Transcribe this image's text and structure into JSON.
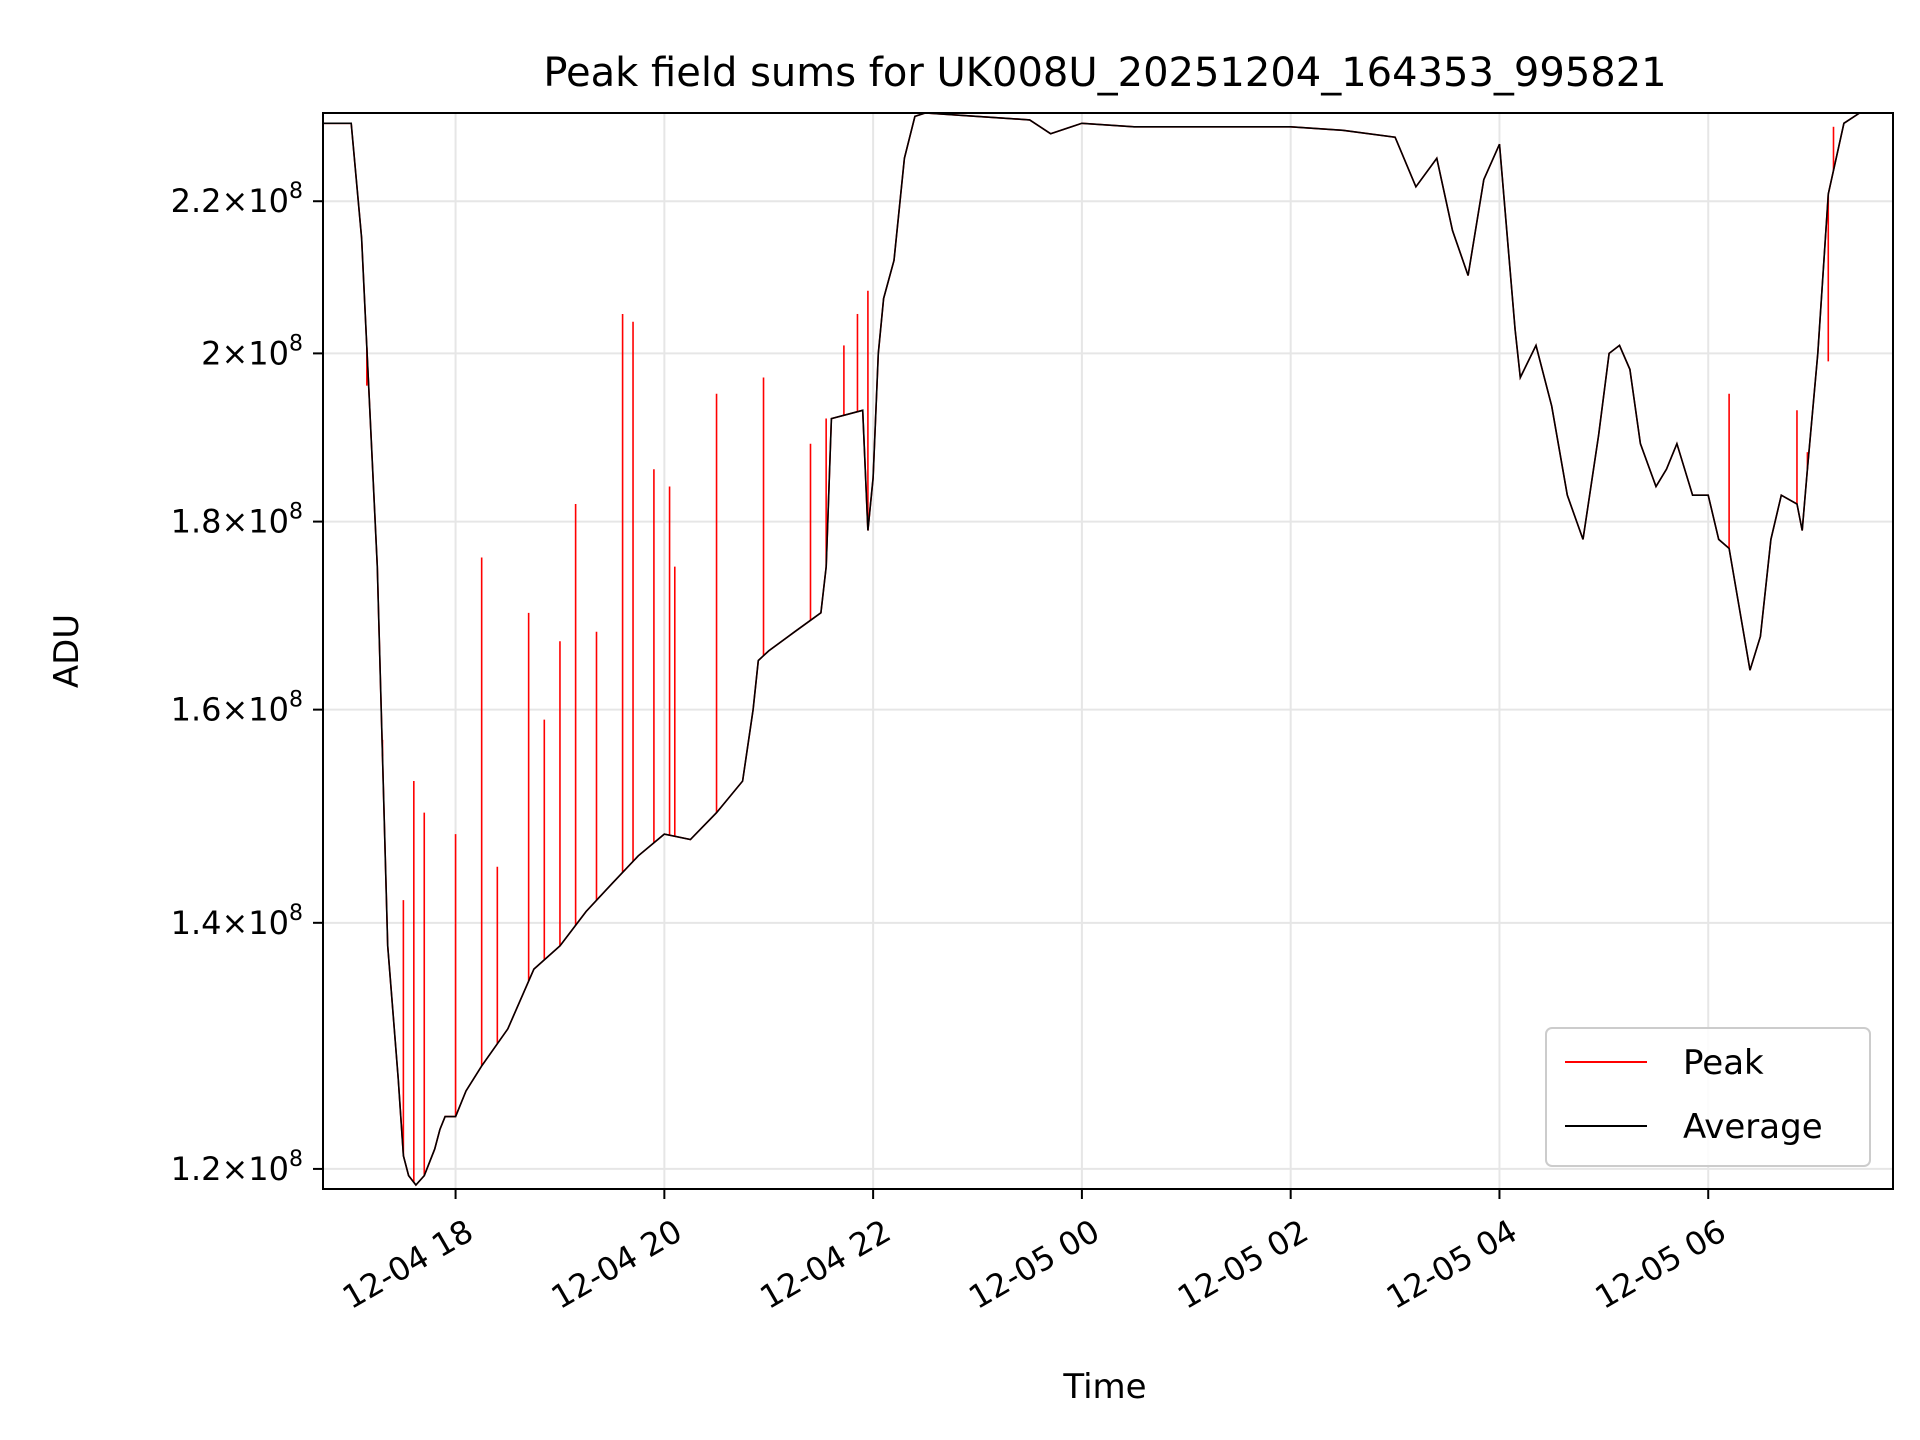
{
  "chart_data": {
    "type": "line",
    "title": "Peak field sums for UK008U_20251204_164353_995821",
    "xlabel": "Time",
    "ylabel": "ADU",
    "yscale": "log",
    "x_ticks": [
      "12-04 18",
      "12-04 20",
      "12-04 22",
      "12-05 00",
      "12-05 02",
      "12-05 04",
      "12-05 06"
    ],
    "x_tick_hours": [
      18,
      20,
      22,
      24,
      26,
      28,
      30
    ],
    "xlim_hours": [
      16.73,
      31.77
    ],
    "y_ticks": [
      {
        "value": 120000000,
        "mant": "1.2",
        "exp": "8"
      },
      {
        "value": 140000000,
        "mant": "1.4",
        "exp": "8"
      },
      {
        "value": 160000000,
        "mant": "1.6",
        "exp": "8"
      },
      {
        "value": 180000000,
        "mant": "1.8",
        "exp": "8"
      },
      {
        "value": 200000000,
        "mant": "2",
        "exp": "8"
      },
      {
        "value": 220000000,
        "mant": "2.2",
        "exp": "8"
      }
    ],
    "ylim": [
      118500000,
      232500000
    ],
    "grid": true,
    "legend_position": "lower-right",
    "series": [
      {
        "name": "Peak",
        "color": "#ff0000",
        "x_hours": [
          16.73,
          17.0,
          17.1,
          17.25,
          17.35,
          17.45,
          17.5,
          17.55,
          17.62,
          17.7,
          17.75,
          17.8,
          17.85,
          17.9,
          18.0,
          18.1,
          18.25,
          18.5,
          18.75,
          19.0,
          19.25,
          19.5,
          19.75,
          20.0,
          20.25,
          20.5,
          20.75,
          20.85,
          20.9,
          21.0,
          21.25,
          21.5,
          21.55,
          21.6,
          21.9,
          21.95,
          22.0,
          22.05,
          22.1,
          22.2,
          22.3,
          22.4,
          22.5,
          23.0,
          23.5,
          23.7,
          24.0,
          24.5,
          25.0,
          25.5,
          26.0,
          26.5,
          27.0,
          27.2,
          27.4,
          27.55,
          27.7,
          27.85,
          28.0,
          28.15,
          28.2,
          28.35,
          28.5,
          28.65,
          28.8,
          28.95,
          29.05,
          29.15,
          29.25,
          29.35,
          29.5,
          29.6,
          29.7,
          29.85,
          30.0,
          30.1,
          30.2,
          30.4,
          30.5,
          30.6,
          30.7,
          30.85,
          30.9,
          30.95,
          31.05,
          31.15,
          31.3,
          31.45,
          31.6,
          31.77
        ],
        "y": [
          231000000,
          231000000,
          215000000,
          175000000,
          138000000,
          127000000,
          121000000,
          119500000,
          118800000,
          119500000,
          120500000,
          121500000,
          123000000,
          124000000,
          124000000,
          126000000,
          128000000,
          131000000,
          136000000,
          138000000,
          141000000,
          143500000,
          146000000,
          148000000,
          147500000,
          150000000,
          153000000,
          160000000,
          165000000,
          166000000,
          168000000,
          170000000,
          175000000,
          192000000,
          193000000,
          179000000,
          185000000,
          200000000,
          207000000,
          212000000,
          226000000,
          232000000,
          232500000,
          232000000,
          231500000,
          229500000,
          231000000,
          230500000,
          230500000,
          230500000,
          230500000,
          230000000,
          229000000,
          222000000,
          226000000,
          216000000,
          210000000,
          223000000,
          228000000,
          203000000,
          197000000,
          201000000,
          193500000,
          183000000,
          178000000,
          190000000,
          200000000,
          201000000,
          198000000,
          189000000,
          184000000,
          186000000,
          189000000,
          183000000,
          183000000,
          178000000,
          177000000,
          164000000,
          167500000,
          178000000,
          183000000,
          182000000,
          179000000,
          186000000,
          200000000,
          221000000,
          231000000,
          232500000,
          232500000,
          232500000
        ],
        "spikes": [
          {
            "x_hours": 17.15,
            "y": 196000000
          },
          {
            "x_hours": 17.3,
            "y": 157000000
          },
          {
            "x_hours": 17.5,
            "y": 142000000
          },
          {
            "x_hours": 17.6,
            "y": 153000000
          },
          {
            "x_hours": 17.7,
            "y": 150000000
          },
          {
            "x_hours": 18.0,
            "y": 148000000
          },
          {
            "x_hours": 18.25,
            "y": 176000000
          },
          {
            "x_hours": 18.4,
            "y": 145000000
          },
          {
            "x_hours": 18.7,
            "y": 170000000
          },
          {
            "x_hours": 18.85,
            "y": 159000000
          },
          {
            "x_hours": 19.0,
            "y": 167000000
          },
          {
            "x_hours": 19.15,
            "y": 182000000
          },
          {
            "x_hours": 19.35,
            "y": 168000000
          },
          {
            "x_hours": 19.6,
            "y": 205000000
          },
          {
            "x_hours": 19.7,
            "y": 204000000
          },
          {
            "x_hours": 19.9,
            "y": 186000000
          },
          {
            "x_hours": 20.05,
            "y": 184000000
          },
          {
            "x_hours": 20.1,
            "y": 175000000
          },
          {
            "x_hours": 20.5,
            "y": 195000000
          },
          {
            "x_hours": 20.95,
            "y": 197000000
          },
          {
            "x_hours": 21.4,
            "y": 189000000
          },
          {
            "x_hours": 21.55,
            "y": 192000000
          },
          {
            "x_hours": 21.72,
            "y": 201000000
          },
          {
            "x_hours": 21.85,
            "y": 205000000
          },
          {
            "x_hours": 21.95,
            "y": 208000000
          },
          {
            "x_hours": 22.2,
            "y": 212000000
          },
          {
            "x_hours": 30.2,
            "y": 195000000
          },
          {
            "x_hours": 30.85,
            "y": 193000000
          },
          {
            "x_hours": 30.95,
            "y": 188000000
          },
          {
            "x_hours": 31.15,
            "y": 199000000
          },
          {
            "x_hours": 31.2,
            "y": 230500000
          }
        ]
      },
      {
        "name": "Average",
        "color": "#000000",
        "x_hours": [
          16.73,
          17.0,
          17.1,
          17.25,
          17.35,
          17.45,
          17.5,
          17.55,
          17.62,
          17.7,
          17.75,
          17.8,
          17.85,
          17.9,
          18.0,
          18.1,
          18.25,
          18.5,
          18.75,
          19.0,
          19.25,
          19.5,
          19.75,
          20.0,
          20.25,
          20.5,
          20.75,
          20.85,
          20.9,
          21.0,
          21.25,
          21.5,
          21.55,
          21.6,
          21.9,
          21.95,
          22.0,
          22.05,
          22.1,
          22.2,
          22.3,
          22.4,
          22.5,
          23.0,
          23.5,
          23.7,
          24.0,
          24.5,
          25.0,
          25.5,
          26.0,
          26.5,
          27.0,
          27.2,
          27.4,
          27.55,
          27.7,
          27.85,
          28.0,
          28.15,
          28.2,
          28.35,
          28.5,
          28.65,
          28.8,
          28.95,
          29.05,
          29.15,
          29.25,
          29.35,
          29.5,
          29.6,
          29.7,
          29.85,
          30.0,
          30.1,
          30.2,
          30.4,
          30.5,
          30.6,
          30.7,
          30.85,
          30.9,
          30.95,
          31.05,
          31.15,
          31.3,
          31.45,
          31.6,
          31.77
        ],
        "y": [
          231000000,
          231000000,
          215000000,
          175000000,
          138000000,
          127000000,
          121000000,
          119500000,
          118800000,
          119500000,
          120500000,
          121500000,
          123000000,
          124000000,
          124000000,
          126000000,
          128000000,
          131000000,
          136000000,
          138000000,
          141000000,
          143500000,
          146000000,
          148000000,
          147500000,
          150000000,
          153000000,
          160000000,
          165000000,
          166000000,
          168000000,
          170000000,
          175000000,
          192000000,
          193000000,
          179000000,
          185000000,
          200000000,
          207000000,
          212000000,
          226000000,
          232000000,
          232500000,
          232000000,
          231500000,
          229500000,
          231000000,
          230500000,
          230500000,
          230500000,
          230500000,
          230000000,
          229000000,
          222000000,
          226000000,
          216000000,
          210000000,
          223000000,
          228000000,
          203000000,
          197000000,
          201000000,
          193500000,
          183000000,
          178000000,
          190000000,
          200000000,
          201000000,
          198000000,
          189000000,
          184000000,
          186000000,
          189000000,
          183000000,
          183000000,
          178000000,
          177000000,
          164000000,
          167500000,
          178000000,
          183000000,
          182000000,
          179000000,
          186000000,
          200000000,
          221000000,
          231000000,
          232500000,
          232500000,
          232500000
        ]
      }
    ]
  }
}
